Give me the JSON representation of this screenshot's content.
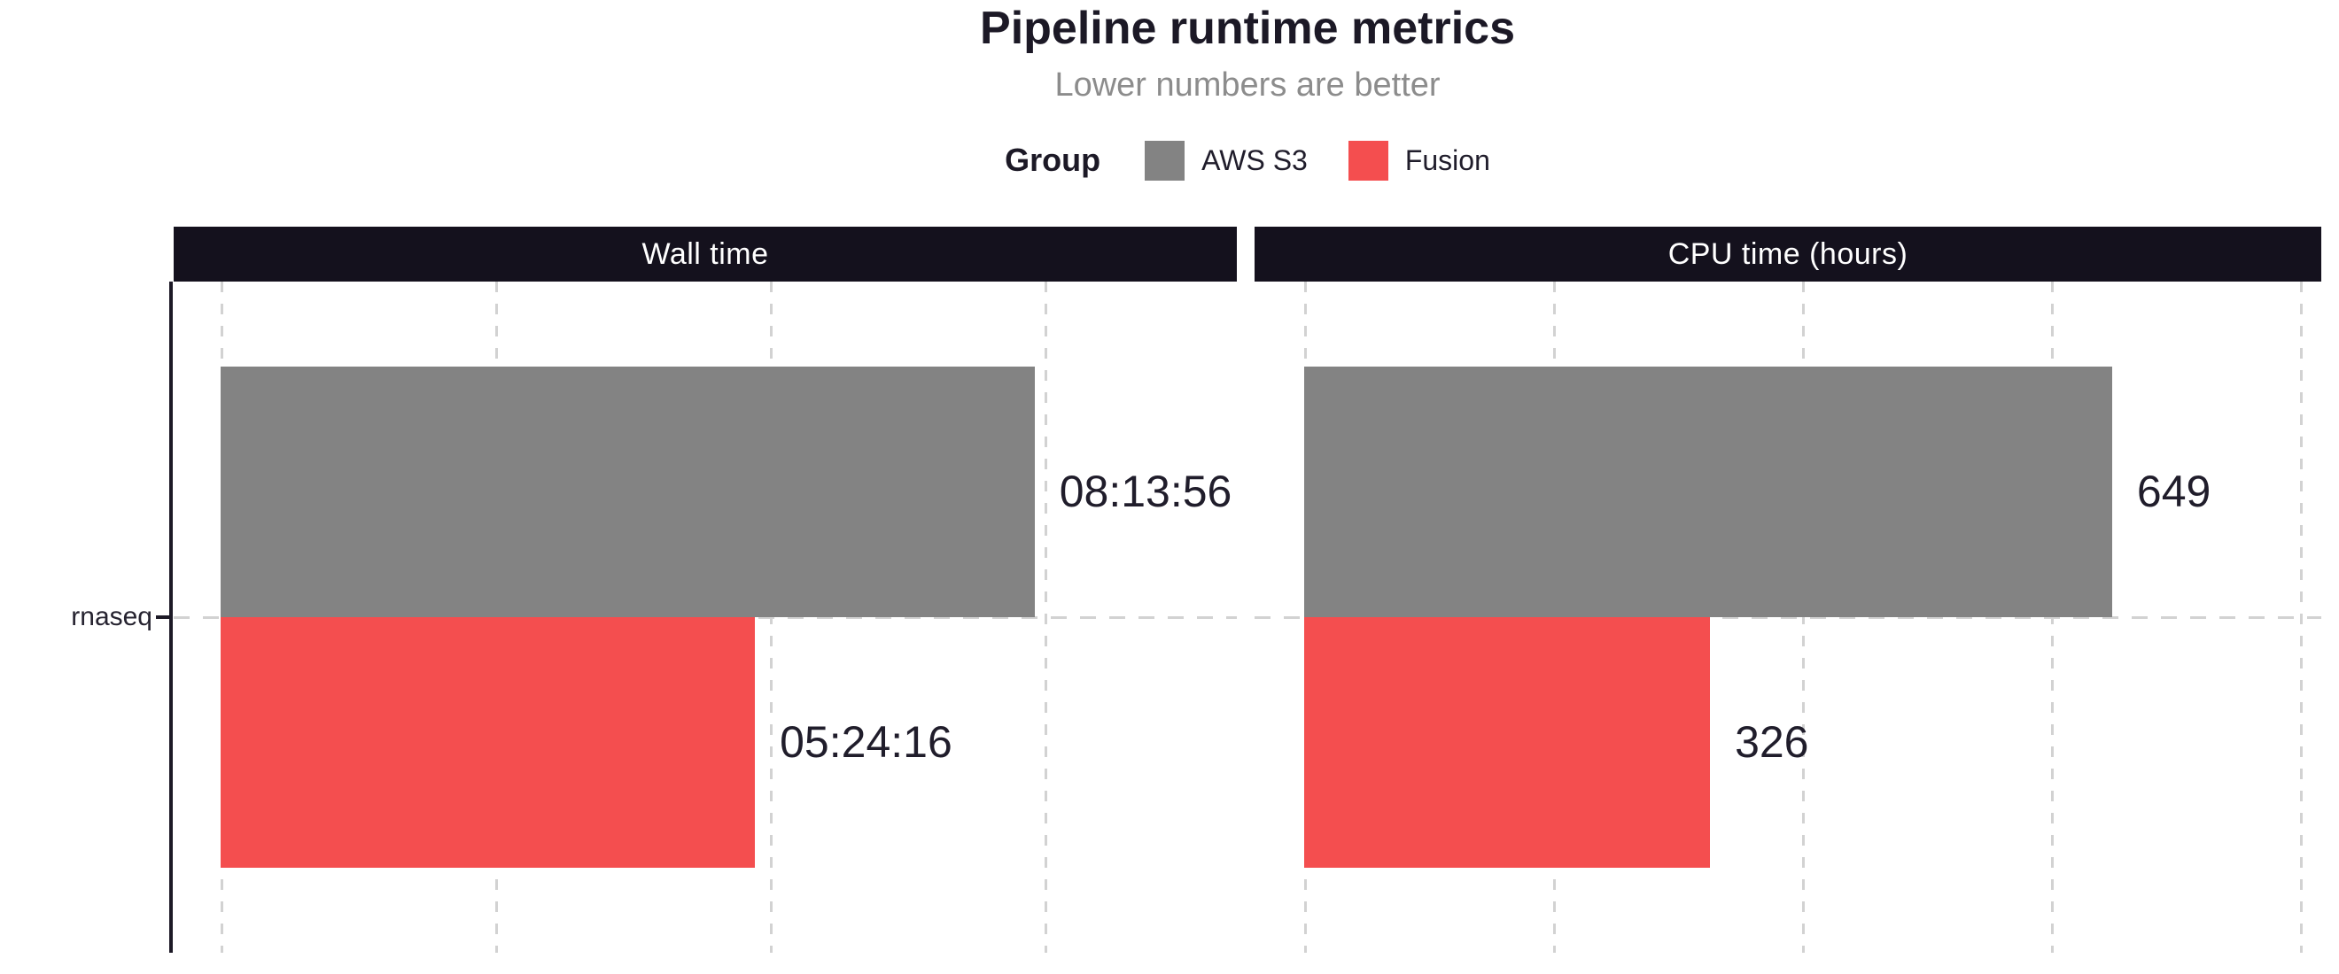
{
  "chart_data": {
    "type": "bar",
    "orientation": "horizontal",
    "title": "Pipeline runtime metrics",
    "subtitle": "Lower numbers are better",
    "categories": [
      "rnaseq"
    ],
    "legend": {
      "title": "Group",
      "position": "top",
      "entries": [
        {
          "label": "AWS S3",
          "color": "#838383"
        },
        {
          "label": "Fusion",
          "color": "#f44e4f"
        }
      ]
    },
    "panels": [
      {
        "title": "Wall time",
        "unit": "seconds",
        "axis_max": 37000,
        "grid_breaks": [
          0,
          10000,
          20000,
          30000
        ],
        "bars": [
          {
            "group": "AWS S3",
            "category": "rnaseq",
            "value": 29636,
            "label": "08:13:56",
            "color": "#838383"
          },
          {
            "group": "Fusion",
            "category": "rnaseq",
            "value": 19456,
            "label": "05:24:16",
            "color": "#f44e4f"
          }
        ]
      },
      {
        "title": "CPU time (hours)",
        "unit": "hours",
        "axis_max": 817,
        "grid_breaks": [
          0,
          200,
          400,
          600,
          800
        ],
        "bars": [
          {
            "group": "AWS S3",
            "category": "rnaseq",
            "value": 649,
            "label": "649",
            "color": "#838383"
          },
          {
            "group": "Fusion",
            "category": "rnaseq",
            "value": 326,
            "label": "326",
            "color": "#f44e4f"
          }
        ]
      }
    ],
    "layout": {
      "grid_style": "dashed",
      "legend_position": "top",
      "strip_background": "#14111d",
      "strip_text_color": "#ffffff",
      "text_color": "#201d2b",
      "subtitle_color": "#8c8c8c",
      "gridline_color": "#d2d2d2",
      "axis_color": "#1c1926",
      "background": "#ffffff"
    }
  }
}
